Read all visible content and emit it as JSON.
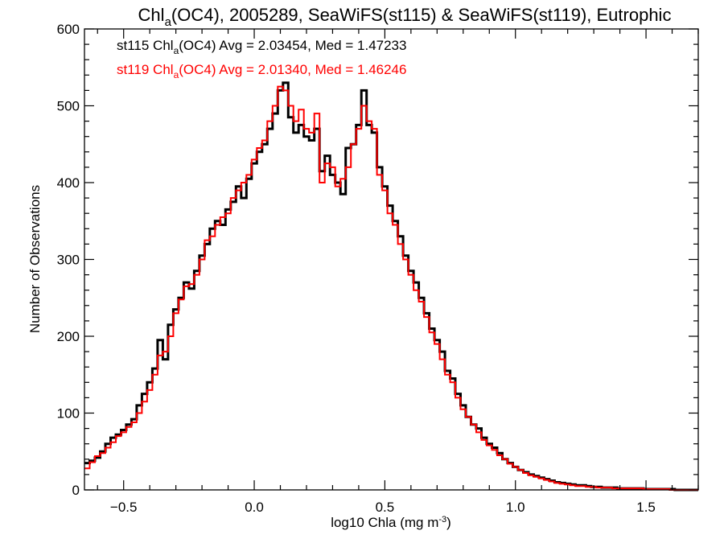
{
  "chart_data": {
    "type": "histogram",
    "title": {
      "pre": "Chl",
      "sub": "a",
      "post": "(OC4), 2005289, SeaWiFS(st115) & SeaWiFS(st119), Eutrophic"
    },
    "xlabel": {
      "pre": "log10 Chla (mg m",
      "sup": "-3",
      "post": ")"
    },
    "ylabel": "Number of Observations",
    "xlim": [
      -0.65,
      1.7
    ],
    "ylim": [
      0,
      600
    ],
    "xticks": [
      -0.5,
      0.0,
      0.5,
      1.0,
      1.5
    ],
    "xtick_labels": [
      "−0.5",
      "0.0",
      "0.5",
      "1.0",
      "1.5"
    ],
    "yticks": [
      0,
      100,
      200,
      300,
      400,
      500,
      600
    ],
    "ytick_labels": [
      "0",
      "100",
      "200",
      "300",
      "400",
      "500",
      "600"
    ],
    "grid": false,
    "bin_start": -0.65,
    "bin_width": 0.02,
    "legend_placement": "top-left",
    "series": [
      {
        "name": "st115",
        "color": "#000000",
        "legend": {
          "pre": "st115 Chl",
          "sub": "a",
          "post": "(OC4) Avg = 2.03454, Med = 1.47233"
        },
        "values": [
          35,
          38,
          42,
          50,
          60,
          68,
          72,
          78,
          85,
          92,
          110,
          125,
          140,
          158,
          195,
          170,
          215,
          235,
          250,
          270,
          262,
          285,
          305,
          320,
          340,
          350,
          345,
          365,
          375,
          395,
          380,
          405,
          425,
          440,
          450,
          470,
          490,
          520,
          530,
          485,
          465,
          475,
          460,
          455,
          470,
          415,
          435,
          410,
          400,
          385,
          445,
          450,
          475,
          520,
          475,
          465,
          420,
          395,
          370,
          350,
          330,
          305,
          285,
          270,
          250,
          230,
          210,
          195,
          180,
          155,
          145,
          125,
          110,
          95,
          85,
          80,
          68,
          60,
          55,
          48,
          40,
          35,
          30,
          26,
          23,
          20,
          18,
          16,
          14,
          12,
          10,
          9,
          8,
          7,
          6,
          6,
          5,
          4,
          4,
          3,
          3,
          3,
          2,
          2,
          2,
          2,
          2,
          1,
          1,
          1,
          1,
          1,
          1,
          0
        ]
      },
      {
        "name": "st119",
        "color": "#ff0000",
        "legend": {
          "pre": "st119 Chl",
          "sub": "a",
          "post": "(OC4) Avg = 2.01340, Med = 1.46246"
        },
        "values": [
          28,
          36,
          44,
          48,
          55,
          62,
          70,
          75,
          82,
          88,
          100,
          115,
          130,
          150,
          175,
          180,
          200,
          230,
          248,
          265,
          268,
          280,
          300,
          325,
          330,
          345,
          355,
          360,
          380,
          390,
          400,
          410,
          430,
          445,
          455,
          480,
          500,
          525,
          520,
          500,
          480,
          495,
          470,
          465,
          490,
          400,
          425,
          420,
          395,
          405,
          420,
          450,
          470,
          500,
          480,
          470,
          410,
          390,
          360,
          345,
          320,
          300,
          280,
          260,
          245,
          225,
          205,
          190,
          170,
          150,
          140,
          120,
          105,
          95,
          85,
          75,
          65,
          58,
          52,
          45,
          40,
          34,
          30,
          26,
          22,
          19,
          17,
          15,
          13,
          11,
          9,
          8,
          7,
          6,
          5,
          5,
          4,
          4,
          3,
          3,
          3,
          2,
          2,
          2,
          2,
          2,
          2,
          1,
          1,
          1,
          1,
          1,
          0,
          0
        ]
      }
    ]
  }
}
